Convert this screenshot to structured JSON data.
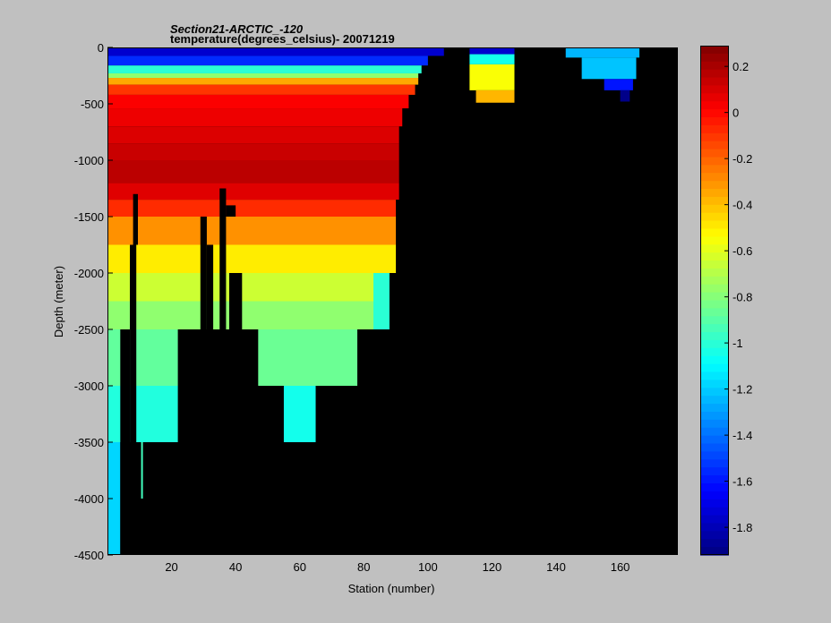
{
  "chart_data": {
    "type": "heatmap",
    "title_line1": "Section21-ARCTIC_-120",
    "title_line2": "temperature(degrees_celsius)- 20071219",
    "xlabel": "Station (number)",
    "ylabel": "Depth (meter)",
    "xlim": [
      0,
      178
    ],
    "ylim": [
      -4500,
      0
    ],
    "x_ticks": [
      {
        "v": 20,
        "label": "20"
      },
      {
        "v": 40,
        "label": "40"
      },
      {
        "v": 60,
        "label": "60"
      },
      {
        "v": 80,
        "label": "80"
      },
      {
        "v": 100,
        "label": "100"
      },
      {
        "v": 120,
        "label": "120"
      },
      {
        "v": 140,
        "label": "140"
      },
      {
        "v": 160,
        "label": "160"
      }
    ],
    "y_ticks": [
      {
        "v": 0,
        "label": "0"
      },
      {
        "v": -500,
        "label": "-500"
      },
      {
        "v": -1000,
        "label": "-1000"
      },
      {
        "v": -1500,
        "label": "-1500"
      },
      {
        "v": -2000,
        "label": "-2000"
      },
      {
        "v": -2500,
        "label": "-2500"
      },
      {
        "v": -3000,
        "label": "-3000"
      },
      {
        "v": -3500,
        "label": "-3500"
      },
      {
        "v": -4000,
        "label": "-4000"
      },
      {
        "v": -4500,
        "label": "-4500"
      }
    ],
    "colorbar": {
      "min": -1.92,
      "max": 0.29,
      "colormap": "jet",
      "ticks": [
        {
          "v": 0.2,
          "label": "0.2"
        },
        {
          "v": 0,
          "label": "0"
        },
        {
          "v": -0.2,
          "label": "-0.2"
        },
        {
          "v": -0.4,
          "label": "-0.4"
        },
        {
          "v": -0.6,
          "label": "-0.6"
        },
        {
          "v": -0.8,
          "label": "-0.8"
        },
        {
          "v": -1,
          "label": "-1"
        },
        {
          "v": -1.2,
          "label": "-1.2"
        },
        {
          "v": -1.4,
          "label": "-1.4"
        },
        {
          "v": -1.6,
          "label": "-1.6"
        },
        {
          "v": -1.8,
          "label": "-1.8"
        }
      ]
    },
    "background_color": "#000000",
    "cells": [
      {
        "x0": 0,
        "x1": 105,
        "y0": 0,
        "y1": -75,
        "value": -1.75
      },
      {
        "x0": 0,
        "x1": 100,
        "y0": -75,
        "y1": -160,
        "value": -1.55
      },
      {
        "x0": 0,
        "x1": 98,
        "y0": -160,
        "y1": -230,
        "value": -1.0
      },
      {
        "x0": 0,
        "x1": 97,
        "y0": -230,
        "y1": -270,
        "value": -0.78
      },
      {
        "x0": 0,
        "x1": 97,
        "y0": -270,
        "y1": -330,
        "value": -0.35
      },
      {
        "x0": 0,
        "x1": 96,
        "y0": -330,
        "y1": -420,
        "value": -0.1
      },
      {
        "x0": 0,
        "x1": 94,
        "y0": -420,
        "y1": -540,
        "value": 0.02
      },
      {
        "x0": 0,
        "x1": 92,
        "y0": -540,
        "y1": -700,
        "value": 0.05
      },
      {
        "x0": 0,
        "x1": 91,
        "y0": -700,
        "y1": -850,
        "value": 0.09
      },
      {
        "x0": 0,
        "x1": 91,
        "y0": -850,
        "y1": -1000,
        "value": 0.13
      },
      {
        "x0": 0,
        "x1": 91,
        "y0": -1000,
        "y1": -1200,
        "value": 0.16
      },
      {
        "x0": 0,
        "x1": 91,
        "y0": -1200,
        "y1": -1350,
        "value": 0.08
      },
      {
        "x0": 0,
        "x1": 90,
        "y0": -1350,
        "y1": -1500,
        "value": -0.08
      },
      {
        "x0": 0,
        "x1": 90,
        "y0": -1500,
        "y1": -1750,
        "value": -0.3
      },
      {
        "x0": 0,
        "x1": 90,
        "y0": -1750,
        "y1": -2000,
        "value": -0.5
      },
      {
        "x0": 0,
        "x1": 88,
        "y0": -2000,
        "y1": -2250,
        "value": -0.65
      },
      {
        "x0": 0,
        "x1": 88,
        "y0": -2250,
        "y1": -2500,
        "value": -0.78
      },
      {
        "x0": 0,
        "x1": 22,
        "y0": -2500,
        "y1": -3000,
        "value": -0.88
      },
      {
        "x0": 47,
        "x1": 78,
        "y0": -2500,
        "y1": -3000,
        "value": -0.86
      },
      {
        "x0": 0,
        "x1": 22,
        "y0": -3000,
        "y1": -3500,
        "value": -1.02
      },
      {
        "x0": 55,
        "x1": 65,
        "y0": -3000,
        "y1": -3500,
        "value": -1.05
      },
      {
        "x0": 0,
        "x1": 4,
        "y0": -3500,
        "y1": -4500,
        "value": -1.18
      },
      {
        "x0": 83,
        "x1": 89,
        "y0": -2000,
        "y1": -2500,
        "value": -1.0
      },
      {
        "x0": 113,
        "x1": 127,
        "y0": 0,
        "y1": -60,
        "value": -1.75
      },
      {
        "x0": 113,
        "x1": 127,
        "y0": -60,
        "y1": -150,
        "value": -1.05
      },
      {
        "x0": 113,
        "x1": 127,
        "y0": -150,
        "y1": -380,
        "value": -0.55
      },
      {
        "x0": 115,
        "x1": 127,
        "y0": -380,
        "y1": -490,
        "value": -0.38
      },
      {
        "x0": 143,
        "x1": 166,
        "y0": 0,
        "y1": -90,
        "value": -1.25
      },
      {
        "x0": 148,
        "x1": 165,
        "y0": -90,
        "y1": -280,
        "value": -1.22
      },
      {
        "x0": 155,
        "x1": 164,
        "y0": -280,
        "y1": -380,
        "value": -1.6
      },
      {
        "x0": 160,
        "x1": 163,
        "y0": -380,
        "y1": -480,
        "value": -1.9
      }
    ],
    "masks": [
      {
        "x0": 4,
        "x1": 7,
        "y0": -2500,
        "y1": -4500
      },
      {
        "x0": 7,
        "x1": 9,
        "y0": -1750,
        "y1": -4500
      },
      {
        "x0": 8,
        "x1": 9.5,
        "y0": -1300,
        "y1": -1750
      },
      {
        "x0": 9.5,
        "x1": 11,
        "y0": -3500,
        "y1": -4500
      },
      {
        "x0": 11,
        "x1": 22,
        "y0": -3500,
        "y1": -4500
      },
      {
        "x0": 22,
        "x1": 31,
        "y0": -2500,
        "y1": -4500
      },
      {
        "x0": 29,
        "x1": 31,
        "y0": -1500,
        "y1": -2500
      },
      {
        "x0": 31,
        "x1": 33,
        "y0": -1750,
        "y1": -2500
      },
      {
        "x0": 33,
        "x1": 35,
        "y0": -2500,
        "y1": -4500
      },
      {
        "x0": 35,
        "x1": 37,
        "y0": -1250,
        "y1": -4500
      },
      {
        "x0": 37,
        "x1": 40,
        "y0": -1400,
        "y1": -1500
      },
      {
        "x0": 37,
        "x1": 38,
        "y0": -2500,
        "y1": -4500
      },
      {
        "x0": 38,
        "x1": 42,
        "y0": -2000,
        "y1": -4500
      },
      {
        "x0": 42,
        "x1": 47,
        "y0": -2500,
        "y1": -4500
      },
      {
        "x0": 47,
        "x1": 55,
        "y0": -3000,
        "y1": -4500
      },
      {
        "x0": 55,
        "x1": 65,
        "y0": -3500,
        "y1": -4500
      },
      {
        "x0": 65,
        "x1": 78,
        "y0": -3000,
        "y1": -4500
      },
      {
        "x0": 78,
        "x1": 90,
        "y0": -2500,
        "y1": -4500
      },
      {
        "x0": 88,
        "x1": 90,
        "y0": -2000,
        "y1": -2500
      }
    ],
    "thin_lines": [
      {
        "x": 10.5,
        "y0": -3500,
        "y1": -4000,
        "value": -0.95
      }
    ]
  }
}
